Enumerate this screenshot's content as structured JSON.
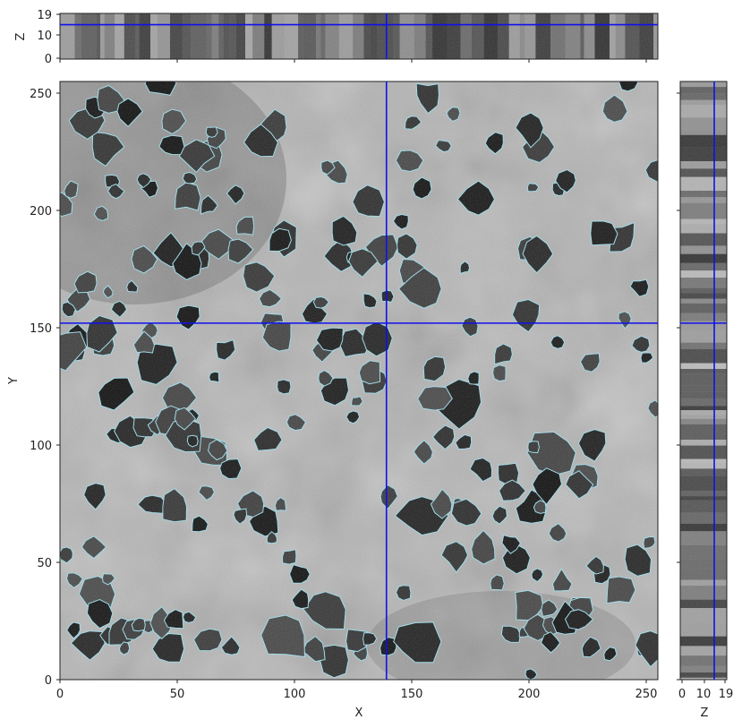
{
  "main_view": {
    "xlabel": "X",
    "ylabel": "Y",
    "x_ticks": [
      "0",
      "50",
      "100",
      "150",
      "200",
      "250"
    ],
    "y_ticks": [
      "0",
      "50",
      "100",
      "150",
      "200",
      "250"
    ],
    "x_range": [
      0,
      255
    ],
    "y_range": [
      0,
      255
    ],
    "crosshair": {
      "x": 142,
      "y": 155
    }
  },
  "top_view": {
    "ylabel": "Z",
    "z_ticks": [
      "0",
      "10",
      "19"
    ],
    "z_range": [
      0,
      19
    ],
    "crosshair_z": 14.5
  },
  "side_view": {
    "xlabel": "Z",
    "z_ticks": [
      "0",
      "10",
      "19"
    ],
    "z_range": [
      0,
      19
    ]
  },
  "colors": {
    "crosshair": "#1010ee",
    "contour": "#9fe0ee",
    "background_gray": "#b8b8b8",
    "dark_spot": "#141414"
  }
}
